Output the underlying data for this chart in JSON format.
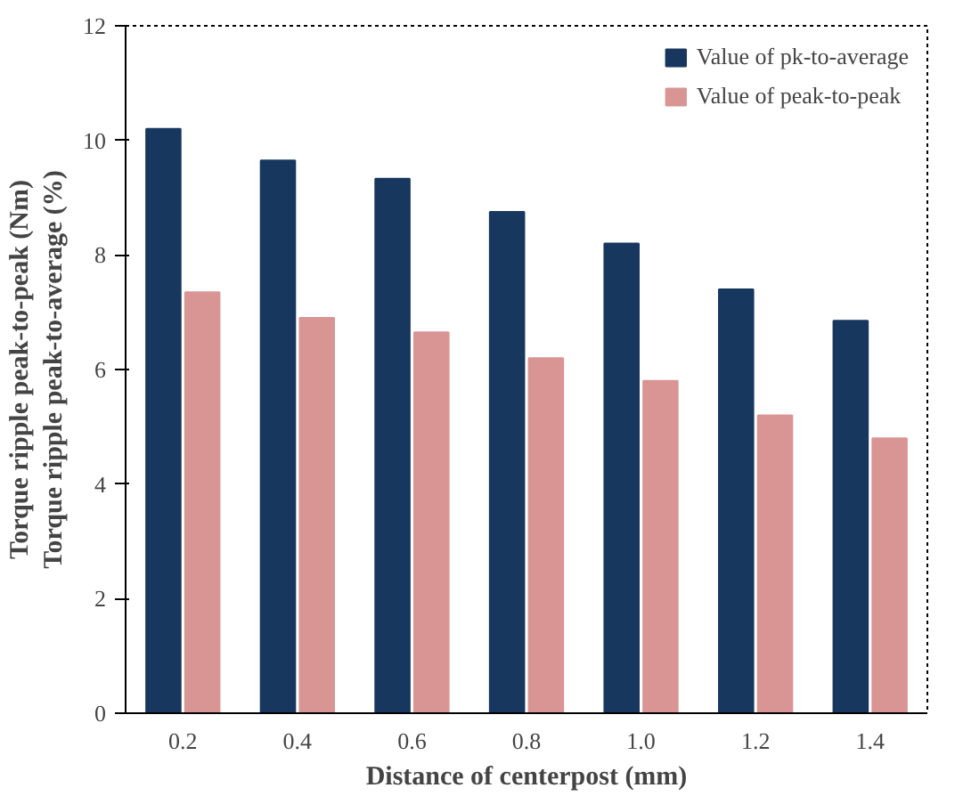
{
  "chart_data": {
    "type": "bar",
    "xlabel": "Distance of centerpost (mm)",
    "ylabel": "Torque ripple peak-to-peak (Nm)\nTorque ripple peak-to-average (%)",
    "categories": [
      "0.2",
      "0.4",
      "0.6",
      "0.8",
      "1.0",
      "1.2",
      "1.4"
    ],
    "series": [
      {
        "name": "Value of pk-to-average",
        "color": "#17375e",
        "values": [
          10.2,
          9.65,
          9.33,
          8.75,
          8.2,
          7.4,
          6.85
        ]
      },
      {
        "name": "Value of peak-to-peak",
        "color": "#d99594",
        "values": [
          7.35,
          6.9,
          6.65,
          6.2,
          5.8,
          5.2,
          4.8
        ]
      }
    ],
    "ylim": [
      0,
      12
    ],
    "yticks": [
      0,
      2,
      4,
      6,
      8,
      10,
      12
    ],
    "grid": false,
    "legend": "top right"
  }
}
